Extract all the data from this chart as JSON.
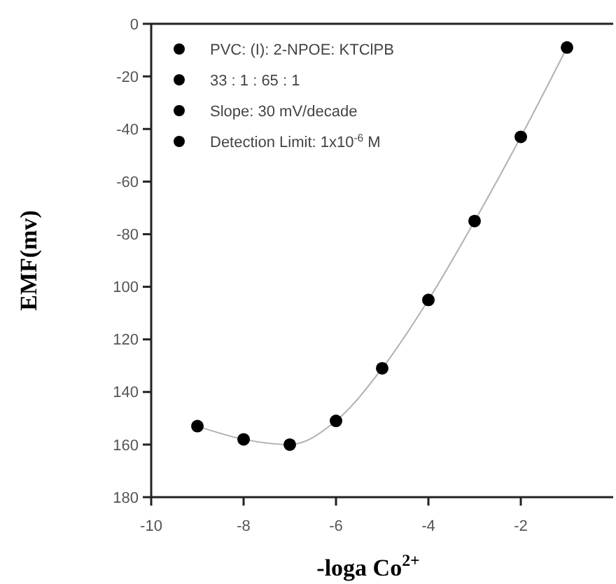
{
  "chart_data": {
    "type": "line",
    "xlabel": "-loga Co$^{2+}$",
    "ylabel": "EMF(mv)",
    "x": [
      -9,
      -8,
      -7,
      -6,
      -5,
      -4,
      -3,
      -2,
      -1
    ],
    "series": [
      {
        "color": "#b0b0b0",
        "marker": "none",
        "values": [
          -153,
          -158,
          -160,
          -151,
          -131,
          -105,
          -75,
          -43,
          -9
        ]
      },
      {
        "type": "scatter",
        "color": "#000000",
        "marker": "circle",
        "values": [
          -153,
          -158,
          -160,
          -151,
          -131,
          -105,
          -75,
          -43,
          -9
        ]
      }
    ],
    "xlim": [
      -10,
      0
    ],
    "xticks": [
      -10,
      -8,
      -6,
      -4,
      -2
    ],
    "ylim": [
      -180,
      0
    ],
    "yticks": [
      0,
      -20,
      -40,
      -60,
      -80,
      {
        "value": -100,
        "label": "100"
      },
      {
        "value": -120,
        "label": "120"
      },
      {
        "value": -140,
        "label": "140"
      },
      {
        "value": -160,
        "label": "160"
      },
      {
        "value": -180,
        "label": "180"
      }
    ],
    "grid": false,
    "annotations": [
      "PVC: (I): 2-NPOE: KTClPB",
      "33  :  1  :  65  :  1",
      "Slope: 30 mV/decade",
      "Detection Limit: 1x10$^{-6}$ M"
    ]
  }
}
